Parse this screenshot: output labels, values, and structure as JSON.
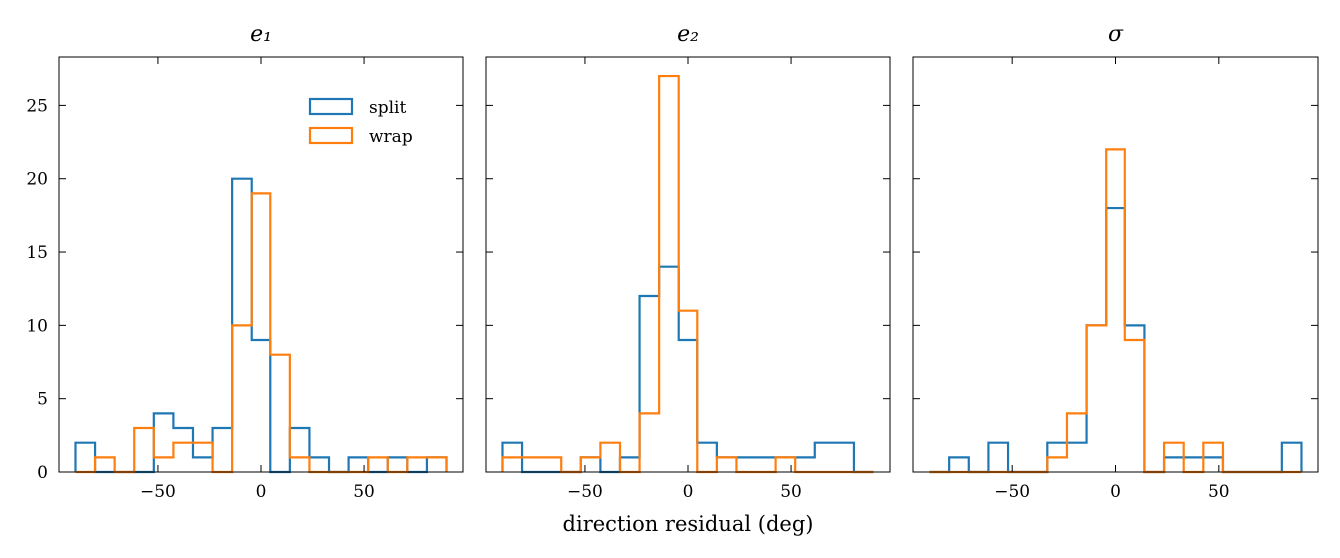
{
  "chart_data": {
    "type": "histogram-step",
    "xlabel": "direction residual (deg)",
    "ylim": [
      0,
      28.3
    ],
    "yticks": [
      0,
      5,
      10,
      15,
      20,
      25
    ],
    "xlim": [
      -98,
      98
    ],
    "xticks": [
      -50,
      0,
      50
    ],
    "xtick_labels": [
      "−50",
      "0",
      "50"
    ],
    "bin_edges": [
      -90,
      -80.5,
      -71,
      -61.5,
      -52,
      -42.5,
      -33,
      -23.5,
      -14,
      -4.5,
      4.5,
      14,
      23.5,
      33,
      42.5,
      52,
      61.5,
      71,
      80.5,
      90
    ],
    "legend": {
      "placement": "upper-right",
      "entries": [
        "split",
        "wrap"
      ]
    },
    "colors": {
      "split": "#1f77b4",
      "wrap": "#ff7f0e"
    },
    "panels": [
      {
        "title": "e₁",
        "series": [
          {
            "name": "split",
            "values": [
              2,
              0,
              0,
              0,
              4,
              3,
              1,
              3,
              20,
              9,
              0,
              3,
              1,
              0,
              1,
              0,
              1,
              0,
              1
            ]
          },
          {
            "name": "wrap",
            "values": [
              0,
              1,
              0,
              3,
              1,
              2,
              2,
              0,
              10,
              19,
              8,
              1,
              0,
              0,
              0,
              1,
              0,
              1,
              1
            ]
          }
        ]
      },
      {
        "title": "e₂",
        "series": [
          {
            "name": "split",
            "values": [
              2,
              0,
              0,
              0,
              1,
              0,
              1,
              12,
              14,
              9,
              2,
              1,
              1,
              1,
              1,
              1,
              2,
              2,
              0
            ]
          },
          {
            "name": "wrap",
            "values": [
              1,
              1,
              1,
              0,
              1,
              2,
              0,
              4,
              27,
              11,
              0,
              1,
              0,
              0,
              1,
              0,
              0,
              0,
              0
            ]
          }
        ]
      },
      {
        "title": "σ",
        "series": [
          {
            "name": "split",
            "values": [
              0,
              1,
              0,
              2,
              0,
              0,
              2,
              2,
              10,
              18,
              10,
              0,
              1,
              1,
              1,
              0,
              0,
              0,
              2
            ]
          },
          {
            "name": "wrap",
            "values": [
              0,
              0,
              0,
              0,
              0,
              0,
              1,
              4,
              10,
              22,
              9,
              0,
              2,
              0,
              2,
              0,
              0,
              0,
              0
            ]
          }
        ]
      }
    ]
  }
}
